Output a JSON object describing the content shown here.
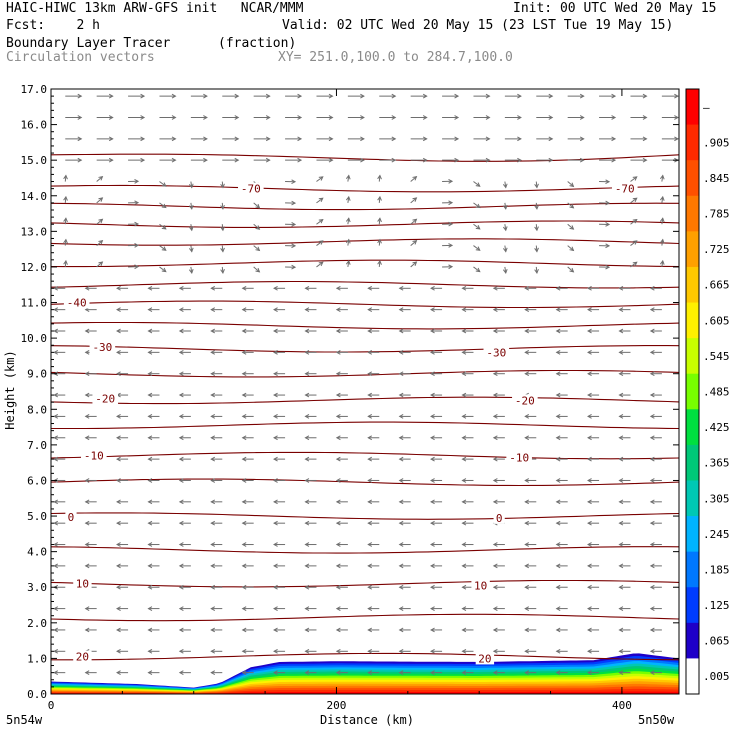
{
  "header": {
    "left_line1": "HAIC-HIWC 13km ARW-GFS init   NCAR/MMM",
    "init": "Init: 00 UTC Wed 20 May 15",
    "fcst": "Fcst:    2 h",
    "valid": "Valid: 02 UTC Wed 20 May 15 (23 LST Tue 19 May 15)",
    "field": "Boundary Layer Tracer",
    "field_unit": "(fraction)",
    "vectors": "Circulation vectors",
    "xy_range": "XY= 251.0,100.0 to 284.7,100.0"
  },
  "chart_data": {
    "type": "cross-section",
    "title": "Boundary Layer Tracer",
    "ylabel": "Height (km)",
    "xlabel": "Distance (km)",
    "x_endpoints": [
      "5n54w",
      "5n50w"
    ],
    "xlim": [
      0,
      440
    ],
    "ylim": [
      0,
      17
    ],
    "xticks": [
      "0",
      "200",
      "400"
    ],
    "yticks": [
      "0.0",
      "1.0",
      "2.0",
      "3.0",
      "4.0",
      "5.0",
      "6.0",
      "7.0",
      "8.0",
      "9.0",
      "10.0",
      "11.0",
      "12.0",
      "13.0",
      "14.0",
      "15.0",
      "16.0",
      "17.0"
    ],
    "colorbar": {
      "labels": [
        "–",
        ".905",
        ".845",
        ".785",
        ".725",
        ".665",
        ".605",
        ".545",
        ".485",
        ".425",
        ".365",
        ".305",
        ".245",
        ".185",
        ".125",
        ".065",
        ".005"
      ],
      "colors": [
        "#ff0000",
        "#ff2a00",
        "#ff5000",
        "#ff7800",
        "#ffa000",
        "#ffc800",
        "#fff000",
        "#c8ff00",
        "#78ff00",
        "#00e040",
        "#00c878",
        "#00c8b4",
        "#00b4ff",
        "#0078ff",
        "#003cff",
        "#1e00c8",
        "#ffffff"
      ]
    },
    "temperature_contours": [
      {
        "height_km": 15.15,
        "label": ""
      },
      {
        "height_km": 14.2,
        "label": "-70"
      },
      {
        "height_km": 13.7,
        "label": ""
      },
      {
        "height_km": 13.2,
        "label": ""
      },
      {
        "height_km": 12.7,
        "label": ""
      },
      {
        "height_km": 12.1,
        "label": ""
      },
      {
        "height_km": 11.5,
        "label": ""
      },
      {
        "height_km": 10.95,
        "label": "-40"
      },
      {
        "height_km": 10.35,
        "label": ""
      },
      {
        "height_km": 9.7,
        "label": "-30"
      },
      {
        "height_km": 9.0,
        "label": ""
      },
      {
        "height_km": 8.25,
        "label": "-20"
      },
      {
        "height_km": 7.55,
        "label": ""
      },
      {
        "height_km": 6.7,
        "label": "-10"
      },
      {
        "height_km": 5.95,
        "label": ""
      },
      {
        "height_km": 5.0,
        "label": "0"
      },
      {
        "height_km": 4.05,
        "label": ""
      },
      {
        "height_km": 3.1,
        "label": "10"
      },
      {
        "height_km": 2.15,
        "label": ""
      },
      {
        "height_km": 1.05,
        "label": "20"
      }
    ],
    "contour_label_positions": [
      {
        "label": "-70",
        "x_km": 140,
        "h": 14.2
      },
      {
        "label": "-70",
        "x_km": 402,
        "h": 14.2
      },
      {
        "label": "-40",
        "x_km": 18,
        "h": 11.0
      },
      {
        "label": "-30",
        "x_km": 36,
        "h": 9.75
      },
      {
        "label": "-30",
        "x_km": 312,
        "h": 9.6
      },
      {
        "label": "-20",
        "x_km": 38,
        "h": 8.3
      },
      {
        "label": "-20",
        "x_km": 332,
        "h": 8.25
      },
      {
        "label": "-10",
        "x_km": 30,
        "h": 6.7
      },
      {
        "label": "-10",
        "x_km": 328,
        "h": 6.65
      },
      {
        "label": "0",
        "x_km": 14,
        "h": 4.98
      },
      {
        "label": "0",
        "x_km": 314,
        "h": 4.95
      },
      {
        "label": "10",
        "x_km": 22,
        "h": 3.1
      },
      {
        "label": "10",
        "x_km": 301,
        "h": 3.05
      },
      {
        "label": "20",
        "x_km": 22,
        "h": 1.05
      },
      {
        "label": "20",
        "x_km": 304,
        "h": 1.0
      }
    ],
    "tracer_top_km": [
      {
        "x": 0,
        "top": 0.35
      },
      {
        "x": 60,
        "top": 0.28
      },
      {
        "x": 100,
        "top": 0.18
      },
      {
        "x": 118,
        "top": 0.3
      },
      {
        "x": 140,
        "top": 0.75
      },
      {
        "x": 160,
        "top": 0.9
      },
      {
        "x": 200,
        "top": 0.92
      },
      {
        "x": 300,
        "top": 0.9
      },
      {
        "x": 380,
        "top": 0.95
      },
      {
        "x": 410,
        "top": 1.15
      },
      {
        "x": 440,
        "top": 1.0
      }
    ],
    "wind_rows_km": [
      16.8,
      16.2,
      15.6,
      15.0,
      14.4,
      13.8,
      13.2,
      12.6,
      12.0,
      11.4,
      10.8,
      10.2,
      9.6,
      9.0,
      8.4,
      7.8,
      7.2,
      6.6,
      6.0,
      5.4,
      4.8,
      4.2,
      3.6,
      3.0,
      2.4,
      1.8,
      1.2,
      0.6
    ]
  }
}
